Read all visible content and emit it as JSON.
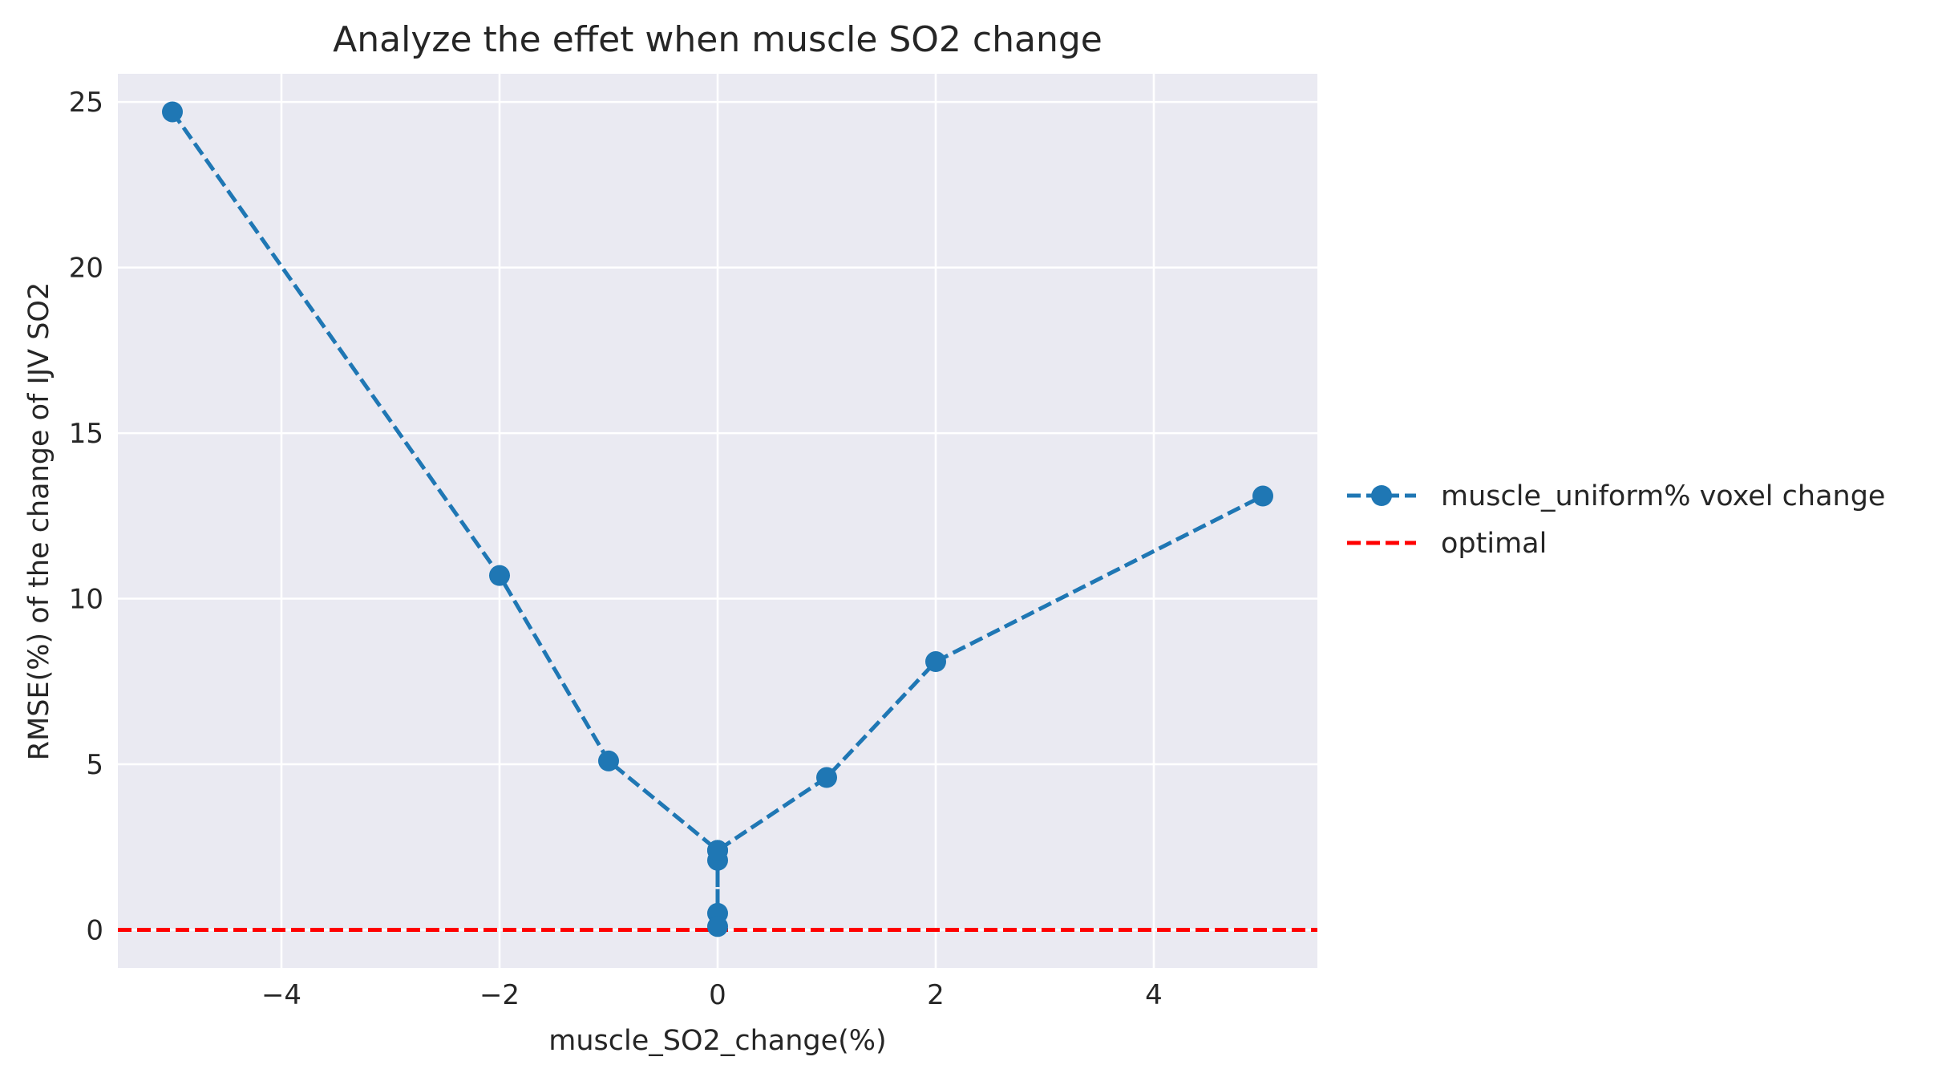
{
  "chart_data": {
    "type": "line",
    "title": "Analyze the effet when muscle SO2 change",
    "xlabel": "muscle_SO2_change(%)",
    "ylabel": "RMSE(%) of the change of IJV SO2",
    "xlim": [
      -5.5,
      5.5
    ],
    "ylim": [
      -1.15,
      25.85
    ],
    "xticks": [
      -4,
      -2,
      0,
      2,
      4
    ],
    "xtick_labels": [
      "−4",
      "−2",
      "0",
      "2",
      "4"
    ],
    "yticks": [
      0,
      5,
      10,
      15,
      20,
      25
    ],
    "ytick_labels": [
      "0",
      "5",
      "10",
      "15",
      "20",
      "25"
    ],
    "grid": true,
    "legend_position": "outside right, center",
    "series": [
      {
        "name": "muscle_uniform% voxel change",
        "color": "#1f77b4",
        "line_style": "dashed",
        "marker": "circle",
        "x": [
          -5,
          -2,
          -1,
          0,
          0,
          0,
          0,
          0,
          1,
          2,
          5
        ],
        "y": [
          24.7,
          10.7,
          5.1,
          2.4,
          2.1,
          0.5,
          0.1,
          2.4,
          4.6,
          8.1,
          13.1
        ]
      }
    ],
    "reference_lines": [
      {
        "name": "optimal",
        "y": 0,
        "color": "#ff0000",
        "line_style": "dashed"
      }
    ],
    "background_color": "#eaeaf2",
    "grid_color": "#ffffff"
  }
}
